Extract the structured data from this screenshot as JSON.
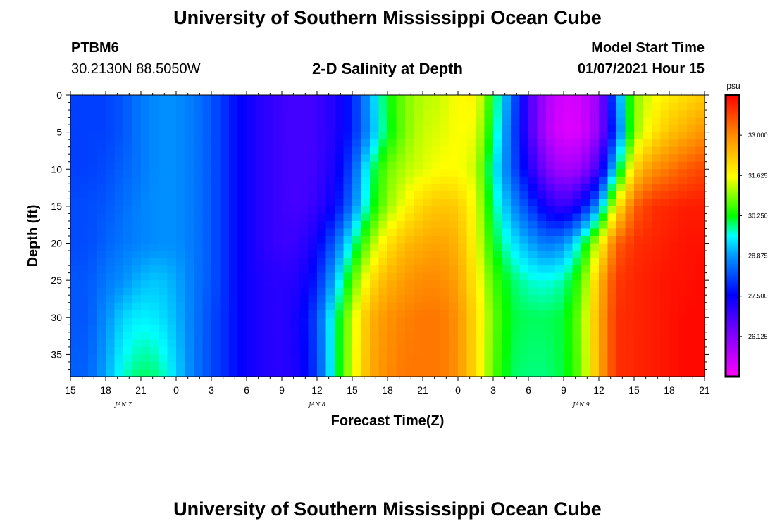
{
  "header": {
    "title": "University of Southern Mississippi Ocean Cube",
    "station": "PTBM6",
    "coords": "30.2130N 88.5050W",
    "plot_title": "2-D Salinity at Depth",
    "model_label": "Model Start Time",
    "model_time": "01/07/2021 Hour 15"
  },
  "footer": {
    "title": "University of Southern Mississippi Ocean Cube"
  },
  "chart_data": {
    "type": "heatmap",
    "title": "2-D Salinity at Depth",
    "xlabel": "Forecast Time(Z)",
    "ylabel": "Depth (ft)",
    "x_tick_labels": [
      "15",
      "18",
      "21",
      "0",
      "3",
      "6",
      "9",
      "12",
      "15",
      "18",
      "21",
      "0",
      "3",
      "6",
      "9",
      "12",
      "15",
      "18",
      "21"
    ],
    "date_labels": [
      {
        "label": "JAN 7",
        "tick_index": 1.5
      },
      {
        "label": "JAN 8",
        "tick_index": 7
      },
      {
        "label": "JAN 9",
        "tick_index": 14.5
      }
    ],
    "xlim_hours": [
      0,
      54
    ],
    "ylim": [
      0,
      38
    ],
    "y_ticks": [
      0,
      5,
      10,
      15,
      20,
      25,
      30,
      35
    ],
    "colorbar": {
      "unit": "psu",
      "ticks": [
        33.0,
        31.625,
        30.25,
        28.875,
        27.5,
        26.125
      ],
      "tick_labels": [
        "33.000",
        "31.625",
        "30.250",
        "28.875",
        "27.500",
        "26.125"
      ],
      "range": [
        24.75,
        34.375
      ]
    },
    "depths_ft": [
      0,
      5,
      10,
      15,
      20,
      25,
      30,
      38
    ],
    "time_hours": [
      0,
      1.5,
      3,
      4.5,
      6,
      7.5,
      9,
      10.5,
      12,
      13.5,
      15,
      16.5,
      18,
      19.5,
      21,
      22.5,
      24,
      25.5,
      27,
      28.5,
      30,
      31.5,
      33,
      34.5,
      36,
      37.5,
      39,
      40.5,
      42,
      43.5,
      45,
      46.5,
      48,
      49.5,
      51,
      52.5,
      54
    ],
    "salinity_psu": [
      [
        28.1,
        28.1,
        28.1,
        28.3,
        28.6,
        28.8,
        28.8,
        28.6,
        28.3,
        27.8,
        27.4,
        27.1,
        26.9,
        26.8,
        26.9,
        27.2,
        27.8,
        29.0,
        30.2,
        30.9,
        31.2,
        31.3,
        31.6,
        31.7,
        30.2,
        28.6,
        26.8,
        25.7,
        25.2,
        25.3,
        25.9,
        28.6,
        30.9,
        31.5,
        31.8,
        32.0,
        32.2
      ],
      [
        28.1,
        28.1,
        28.1,
        28.3,
        28.6,
        28.8,
        28.8,
        28.6,
        28.3,
        27.8,
        27.4,
        27.1,
        26.9,
        26.8,
        26.9,
        27.2,
        27.8,
        28.9,
        30.1,
        30.9,
        31.3,
        31.4,
        31.6,
        31.5,
        30.0,
        28.4,
        26.9,
        25.6,
        25.1,
        25.2,
        26.0,
        28.2,
        30.9,
        31.8,
        32.3,
        32.6,
        32.9
      ],
      [
        28.1,
        28.1,
        28.2,
        28.4,
        28.6,
        28.8,
        28.8,
        28.6,
        28.3,
        27.8,
        27.4,
        27.1,
        26.9,
        26.8,
        26.9,
        27.3,
        28.2,
        29.8,
        30.8,
        31.2,
        31.4,
        31.6,
        31.6,
        31.3,
        29.6,
        28.4,
        27.3,
        26.2,
        25.7,
        25.9,
        26.9,
        29.5,
        32.1,
        32.9,
        33.2,
        33.5,
        33.7
      ],
      [
        28.2,
        28.2,
        28.3,
        28.5,
        28.7,
        28.8,
        28.8,
        28.6,
        28.3,
        27.8,
        27.4,
        27.1,
        26.9,
        26.8,
        27.0,
        27.5,
        28.6,
        30.0,
        31.0,
        31.6,
        32.1,
        32.3,
        32.2,
        31.5,
        29.9,
        28.9,
        28.1,
        27.3,
        26.9,
        27.5,
        28.9,
        31.7,
        33.4,
        33.9,
        34.0,
        34.1,
        34.1
      ],
      [
        28.2,
        28.2,
        28.4,
        28.6,
        28.7,
        28.8,
        28.8,
        28.6,
        28.3,
        27.8,
        27.4,
        27.1,
        26.9,
        27.0,
        27.4,
        28.4,
        29.7,
        31.0,
        31.9,
        32.4,
        32.6,
        32.7,
        32.5,
        31.6,
        30.2,
        29.5,
        29.0,
        28.6,
        28.8,
        29.8,
        31.5,
        33.4,
        33.9,
        34.0,
        34.1,
        34.2,
        34.2
      ],
      [
        28.3,
        28.3,
        28.6,
        28.8,
        29.1,
        29.2,
        29.0,
        28.6,
        28.3,
        27.8,
        27.4,
        27.2,
        27.1,
        27.2,
        27.8,
        29.1,
        30.6,
        31.9,
        32.5,
        32.8,
        33.0,
        33.0,
        32.7,
        31.8,
        30.6,
        30.0,
        29.7,
        29.6,
        29.8,
        30.6,
        32.4,
        33.8,
        34.0,
        34.1,
        34.2,
        34.2,
        34.3
      ],
      [
        28.3,
        28.3,
        28.8,
        29.3,
        29.5,
        29.4,
        29.1,
        28.6,
        28.2,
        27.8,
        27.4,
        27.2,
        27.1,
        27.4,
        28.2,
        29.8,
        31.3,
        32.5,
        32.9,
        33.1,
        33.2,
        33.2,
        32.9,
        32.0,
        30.8,
        30.1,
        30.0,
        30.0,
        30.1,
        30.9,
        32.6,
        33.9,
        34.0,
        34.1,
        34.2,
        34.3,
        34.3
      ],
      [
        28.4,
        28.4,
        29.0,
        29.7,
        30.0,
        29.9,
        29.3,
        28.6,
        28.2,
        27.8,
        27.4,
        27.2,
        27.1,
        27.3,
        28.1,
        29.8,
        31.4,
        32.6,
        33.0,
        33.2,
        33.2,
        33.2,
        32.9,
        32.0,
        30.7,
        30.0,
        29.9,
        29.9,
        30.1,
        30.8,
        32.6,
        33.9,
        34.0,
        34.1,
        34.2,
        34.3,
        34.3
      ]
    ]
  }
}
